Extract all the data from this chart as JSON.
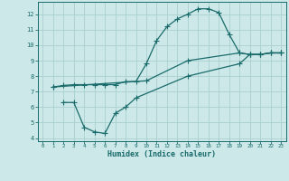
{
  "xlabel": "Humidex (Indice chaleur)",
  "xlim": [
    -0.5,
    23.5
  ],
  "ylim": [
    3.8,
    12.8
  ],
  "yticks": [
    4,
    5,
    6,
    7,
    8,
    9,
    10,
    11,
    12
  ],
  "xticks": [
    0,
    1,
    2,
    3,
    4,
    5,
    6,
    7,
    8,
    9,
    10,
    11,
    12,
    13,
    14,
    15,
    16,
    17,
    18,
    19,
    20,
    21,
    22,
    23
  ],
  "bg_color": "#cce8e8",
  "grid_color": "#aacfcf",
  "line_color": "#1a6b6b",
  "line1_x": [
    1,
    2,
    3,
    4,
    5,
    6,
    7,
    8,
    9,
    10,
    11,
    12,
    13,
    14,
    15,
    16,
    17,
    18,
    19,
    20,
    21,
    22,
    23
  ],
  "line1_y": [
    7.3,
    7.4,
    7.45,
    7.45,
    7.45,
    7.45,
    7.45,
    7.65,
    7.65,
    8.8,
    10.3,
    11.2,
    11.7,
    12.0,
    12.35,
    12.35,
    12.1,
    10.7,
    9.5,
    9.4,
    9.4,
    9.5,
    9.5
  ],
  "line2_x": [
    1,
    10,
    14,
    19,
    20,
    21,
    22,
    23
  ],
  "line2_y": [
    7.3,
    7.7,
    9.0,
    9.5,
    9.4,
    9.4,
    9.5,
    9.5
  ],
  "line3_x": [
    2,
    3,
    4,
    5,
    6,
    7,
    8,
    9,
    14,
    19,
    20,
    21,
    22,
    23
  ],
  "line3_y": [
    6.3,
    6.3,
    4.7,
    4.4,
    4.3,
    5.6,
    6.0,
    6.6,
    8.0,
    8.8,
    9.4,
    9.4,
    9.5,
    9.5
  ]
}
